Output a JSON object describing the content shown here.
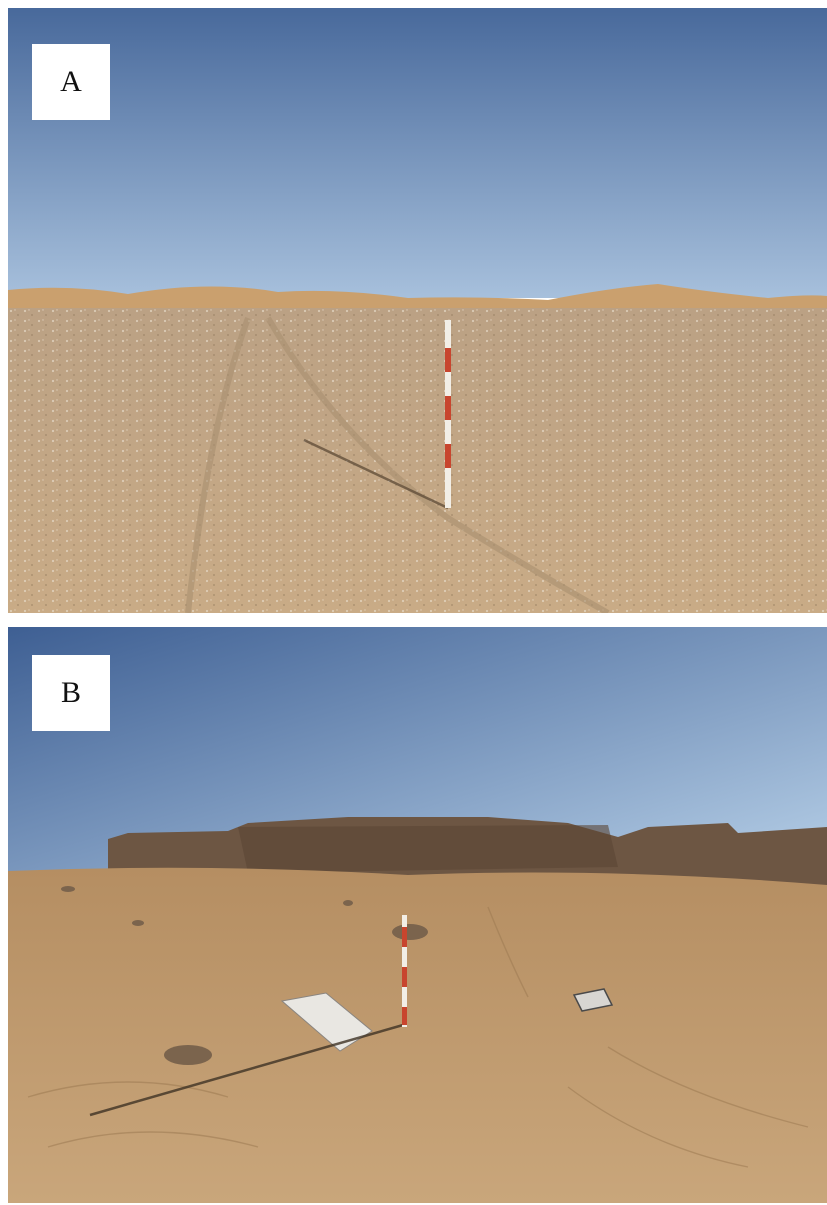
{
  "figure": {
    "panels": [
      {
        "label": "A"
      },
      {
        "label": "B"
      }
    ]
  },
  "colors": {
    "sky_top": "#4a6e9f",
    "sky_bottom": "#9db8d6",
    "sand_light": "#d2b085",
    "sand_dark": "#b08a5e",
    "rock": "#6d5643",
    "pole_red": "#c8452e",
    "pole_white": "#f2eee6"
  }
}
